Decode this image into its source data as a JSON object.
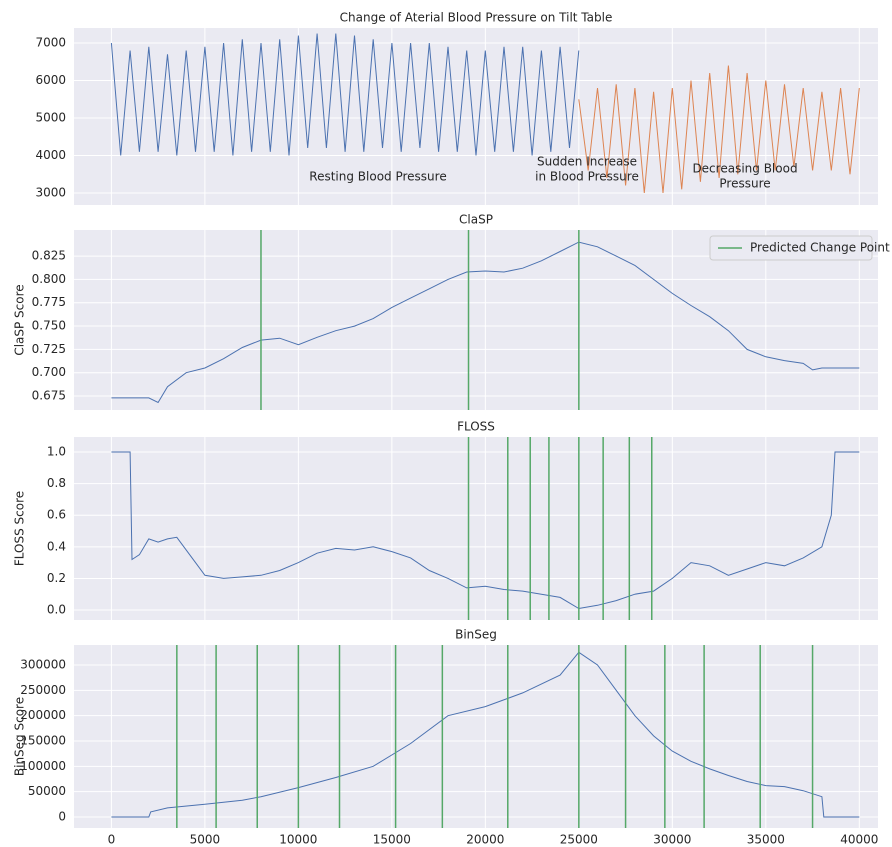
{
  "chart_data": [
    {
      "type": "line",
      "title": "Change of Aterial Blood Pressure on Tilt Table",
      "annotations": [
        {
          "lines": [
            "Resting Blood Pressure"
          ]
        },
        {
          "lines": [
            "Sudden Increase",
            "in Blood Pressure"
          ]
        },
        {
          "lines": [
            "Decreasing Blood",
            "Pressure"
          ]
        }
      ],
      "series": [
        {
          "color": "#4c72b0",
          "x": [
            0,
            500,
            1000,
            1500,
            2000,
            2500,
            3000,
            3500,
            4000,
            4500,
            5000,
            5500,
            6000,
            6500,
            7000,
            7500,
            8000,
            8500,
            9000,
            9500,
            10000,
            10500,
            11000,
            11500,
            12000,
            12500,
            13000,
            13500,
            14000,
            14500,
            15000,
            15500,
            16000,
            16500,
            17000,
            17500,
            18000,
            18500,
            19000,
            19500,
            20000,
            20500,
            21000,
            21500,
            22000,
            22500,
            23000,
            23500,
            24000,
            24500,
            25000
          ],
          "values": [
            7000,
            4000,
            6800,
            4100,
            6900,
            4100,
            6700,
            4000,
            6800,
            4100,
            6900,
            4100,
            7000,
            4000,
            7100,
            4100,
            7000,
            4100,
            7100,
            4000,
            7200,
            4200,
            7250,
            4200,
            7250,
            4100,
            7200,
            4100,
            7100,
            4200,
            7000,
            4100,
            7000,
            4200,
            7000,
            4100,
            6900,
            4100,
            6800,
            4000,
            6800,
            4100,
            6900,
            4100,
            6900,
            4000,
            6800,
            4100,
            6900,
            4200,
            6800
          ]
        },
        {
          "color": "#dd8452",
          "x": [
            25000,
            25500,
            26000,
            26500,
            27000,
            27500,
            28000,
            28500,
            29000,
            29500,
            30000,
            30500,
            31000,
            31500,
            32000,
            32500,
            33000,
            33500,
            34000,
            34500,
            35000,
            35500,
            36000,
            36500,
            37000,
            37500,
            38000,
            38500,
            39000,
            39500,
            40000
          ],
          "values": [
            5500,
            3600,
            5800,
            3400,
            5900,
            3200,
            5800,
            3000,
            5700,
            3000,
            5800,
            3100,
            6000,
            3300,
            6200,
            3400,
            6400,
            3500,
            6200,
            3600,
            6000,
            3600,
            5900,
            3700,
            5800,
            3600,
            5700,
            3600,
            5800,
            3500,
            5800
          ]
        }
      ],
      "xlim": [
        -2000,
        41000
      ],
      "xticks": [
        0,
        5000,
        10000,
        15000,
        20000,
        25000,
        30000,
        35000,
        40000
      ],
      "ylim": [
        2680,
        7400
      ],
      "yticks": [
        3000,
        4000,
        5000,
        6000,
        7000
      ],
      "grid": true
    },
    {
      "type": "line",
      "title": "ClaSP",
      "ylabel": "ClaSP Score",
      "color": "#4c72b0",
      "x": [
        0,
        2000,
        2500,
        3000,
        4000,
        5000,
        6000,
        7000,
        8000,
        9000,
        10000,
        11000,
        12000,
        13000,
        14000,
        15000,
        16000,
        17000,
        18000,
        19000,
        20000,
        21000,
        22000,
        23000,
        24000,
        25000,
        26000,
        27000,
        28000,
        29000,
        30000,
        31000,
        32000,
        33000,
        34000,
        35000,
        36000,
        37000,
        37500,
        38000,
        40000
      ],
      "values": [
        0.673,
        0.673,
        0.668,
        0.685,
        0.7,
        0.705,
        0.715,
        0.727,
        0.735,
        0.737,
        0.73,
        0.738,
        0.745,
        0.75,
        0.758,
        0.77,
        0.78,
        0.79,
        0.8,
        0.808,
        0.809,
        0.808,
        0.812,
        0.82,
        0.83,
        0.84,
        0.835,
        0.825,
        0.815,
        0.8,
        0.785,
        0.772,
        0.76,
        0.745,
        0.725,
        0.717,
        0.713,
        0.71,
        0.703,
        0.705,
        0.705
      ],
      "vlines": {
        "name": "Predicted Change Point",
        "color": "#55a868",
        "x": [
          8000,
          19100,
          25000
        ]
      },
      "legend": "upper right",
      "xlim": [
        -2000,
        41000
      ],
      "xticks": [
        0,
        5000,
        10000,
        15000,
        20000,
        25000,
        30000,
        35000,
        40000
      ],
      "ylim": [
        0.66,
        0.853
      ],
      "yticks": [
        0.675,
        {
          "value": 0.7,
          "label": "0.700"
        },
        0.725,
        {
          "value": 0.75,
          "label": "0.750"
        },
        0.775,
        {
          "value": 0.8,
          "label": "0.800"
        },
        0.825
      ],
      "grid": true
    },
    {
      "type": "line",
      "title": "FLOSS",
      "ylabel": "FLOSS Score",
      "color": "#4c72b0",
      "x": [
        0,
        1000,
        1100,
        1500,
        2000,
        2500,
        3000,
        3500,
        4500,
        5000,
        6000,
        7000,
        8000,
        9000,
        10000,
        11000,
        12000,
        13000,
        14000,
        15000,
        16000,
        17000,
        18000,
        19000,
        20000,
        21000,
        22000,
        23000,
        24000,
        25000,
        26000,
        27000,
        28000,
        29000,
        30000,
        31000,
        32000,
        33000,
        34000,
        35000,
        36000,
        37000,
        38000,
        38500,
        38700,
        40000
      ],
      "values": [
        1.0,
        1.0,
        0.32,
        0.35,
        0.45,
        0.43,
        0.45,
        0.46,
        0.3,
        0.22,
        0.2,
        0.21,
        0.22,
        0.25,
        0.3,
        0.36,
        0.39,
        0.38,
        0.4,
        0.37,
        0.33,
        0.25,
        0.2,
        0.14,
        0.15,
        0.13,
        0.12,
        0.1,
        0.08,
        0.01,
        0.03,
        0.06,
        0.1,
        0.12,
        0.2,
        0.3,
        0.28,
        0.22,
        0.26,
        0.3,
        0.28,
        0.33,
        0.4,
        0.6,
        1.0,
        1.0
      ],
      "vlines": {
        "color": "#55a868",
        "x": [
          19100,
          21200,
          22400,
          23400,
          25000,
          26300,
          27700,
          28900
        ]
      },
      "xlim": [
        -2000,
        41000
      ],
      "xticks": [
        0,
        5000,
        10000,
        15000,
        20000,
        25000,
        30000,
        35000,
        40000
      ],
      "ylim": [
        -0.063,
        1.095
      ],
      "yticks": [
        {
          "value": 0,
          "label": "0.0"
        },
        0.2,
        0.4,
        0.6,
        0.8,
        {
          "value": 1,
          "label": "1.0"
        }
      ],
      "grid": true
    },
    {
      "type": "line",
      "title": "BinSeg",
      "ylabel": "BinSeg Score",
      "color": "#4c72b0",
      "x": [
        0,
        2000,
        2100,
        3000,
        5000,
        7000,
        8000,
        10000,
        12000,
        14000,
        16000,
        18000,
        20000,
        22000,
        24000,
        25000,
        26000,
        27000,
        28000,
        29000,
        30000,
        31000,
        32000,
        33000,
        34000,
        35000,
        36000,
        37000,
        38000,
        38100,
        40000
      ],
      "values": [
        0,
        0,
        10000,
        18000,
        25000,
        33000,
        40000,
        58000,
        78000,
        100000,
        145000,
        200000,
        218000,
        245000,
        280000,
        325000,
        300000,
        250000,
        200000,
        160000,
        130000,
        110000,
        95000,
        82000,
        70000,
        62000,
        60000,
        52000,
        40000,
        0,
        0
      ],
      "vlines": {
        "color": "#55a868",
        "x": [
          3500,
          5600,
          7800,
          10000,
          12200,
          15200,
          17700,
          21200,
          25000,
          27500,
          29600,
          31700,
          34700,
          37500
        ]
      },
      "xlim": [
        -2000,
        41000
      ],
      "xticks": [
        0,
        5000,
        10000,
        15000,
        20000,
        25000,
        30000,
        35000,
        40000
      ],
      "ylim": [
        -21700,
        339500
      ],
      "yticks": [
        0,
        50000,
        100000,
        150000,
        200000,
        250000,
        300000
      ],
      "grid": true
    }
  ]
}
